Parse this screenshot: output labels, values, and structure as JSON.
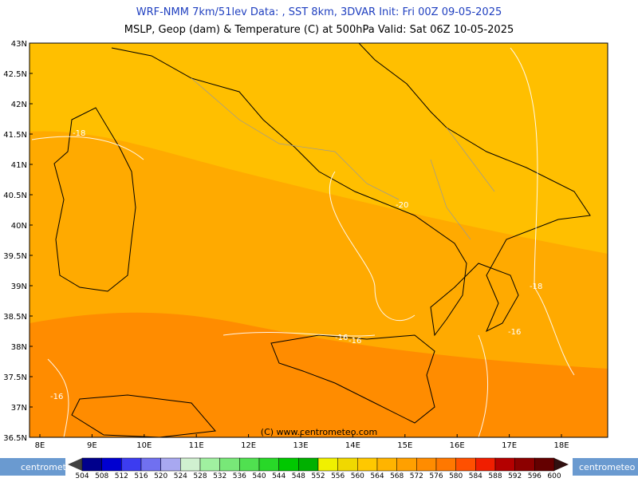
{
  "header": {
    "line1": "WRF-NMM 7km/51lev  Data: , SST 8km, 3DVAR  Init: Fri 00Z 09-05-2025",
    "line2": "MSLP, Geop (dam) & Temperature (C) at 500hPa  Valid: Sat 06Z 10-05-2025"
  },
  "map": {
    "lat_labels": [
      "43N",
      "42.5N",
      "42N",
      "41.5N",
      "41N",
      "40.5N",
      "40N",
      "39.5N",
      "39N",
      "38.5N",
      "38N",
      "37.5N",
      "37N",
      "36.5N"
    ],
    "lon_labels": [
      "8E",
      "9E",
      "10E",
      "11E",
      "12E",
      "13E",
      "14E",
      "15E",
      "16E",
      "17E",
      "18E"
    ],
    "contour_labels": [
      "-18",
      "-20",
      "-18",
      "-16",
      "-16",
      "-16",
      "-16"
    ],
    "copyright": "(C) www.centrometeo.com"
  },
  "colorbar": {
    "logo": "centrometeo",
    "labels": [
      504,
      508,
      512,
      516,
      520,
      524,
      528,
      532,
      536,
      540,
      544,
      548,
      552,
      556,
      560,
      564,
      568,
      572,
      576,
      580,
      584,
      588,
      592,
      596,
      600
    ],
    "colors": [
      "#00008c",
      "#0000d0",
      "#3c3cf0",
      "#7070f0",
      "#a8a8f0",
      "#d0f0d0",
      "#a0f0a0",
      "#78e878",
      "#50e050",
      "#28d828",
      "#00c800",
      "#00b000",
      "#f0f000",
      "#f0d800",
      "#ffc800",
      "#ffb400",
      "#ffa000",
      "#ff8c00",
      "#ff7800",
      "#ff5000",
      "#f01e00",
      "#b40000",
      "#8c0000",
      "#640000"
    ]
  }
}
